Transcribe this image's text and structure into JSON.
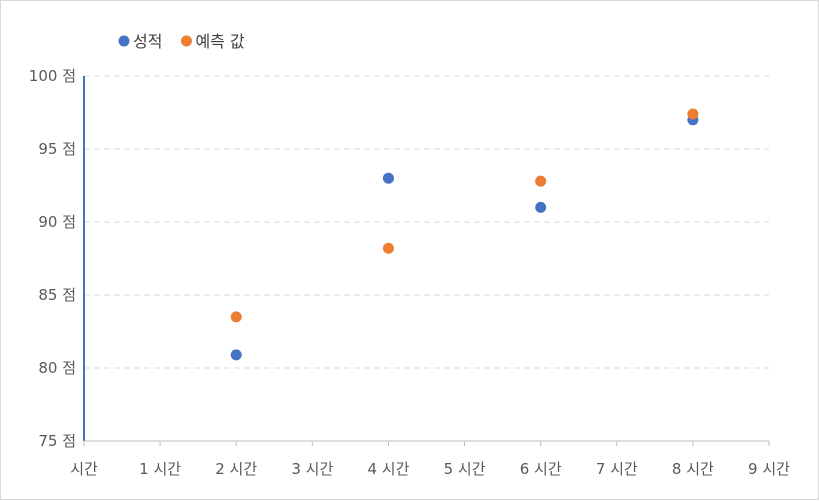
{
  "chart_data": {
    "type": "scatter",
    "title": "",
    "xlabel": "",
    "ylabel": "",
    "xlim": [
      0,
      9
    ],
    "ylim": [
      75,
      100
    ],
    "x_tick_values": [
      0,
      1,
      2,
      3,
      4,
      5,
      6,
      7,
      8,
      9
    ],
    "x_tick_labels": [
      "시간",
      "1 시간",
      "2 시간",
      "3 시간",
      "4 시간",
      "5 시간",
      "6 시간",
      "7 시간",
      "8 시간",
      "9 시간"
    ],
    "y_tick_values": [
      75,
      80,
      85,
      90,
      95,
      100
    ],
    "y_tick_labels": [
      "75 점",
      "80 점",
      "85 점",
      "90 점",
      "95 점",
      "100 점"
    ],
    "grid": true,
    "legend_position": "top-left",
    "series": [
      {
        "name": "성적",
        "color": "#4472c4",
        "points": [
          {
            "x": 2,
            "y": 80.9
          },
          {
            "x": 4,
            "y": 93.0
          },
          {
            "x": 6,
            "y": 91.0
          },
          {
            "x": 8,
            "y": 97.0
          }
        ]
      },
      {
        "name": "예측 값",
        "color": "#ed7d31",
        "points": [
          {
            "x": 2,
            "y": 83.5
          },
          {
            "x": 4,
            "y": 88.2
          },
          {
            "x": 6,
            "y": 92.8
          },
          {
            "x": 8,
            "y": 97.4
          }
        ]
      }
    ]
  }
}
